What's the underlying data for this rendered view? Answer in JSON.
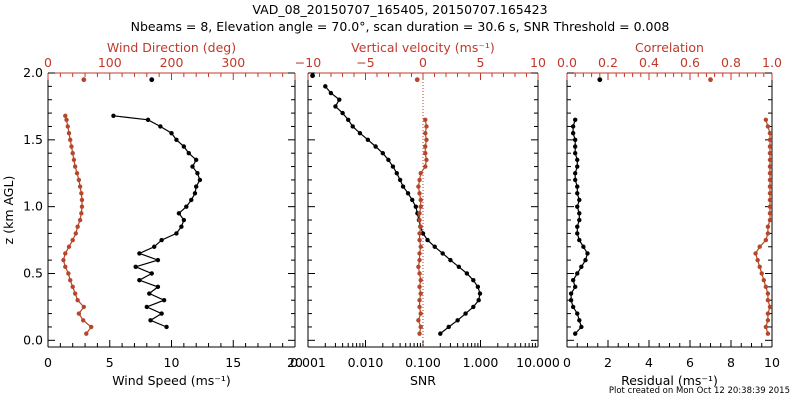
{
  "title_line1": "VAD_08_20150707_165405, 20150707.165423",
  "title_line2": "Nbeams = 8, Elevation angle = 70.0°, scan duration = 30.6 s, SNR Threshold = 0.008",
  "footer": "Plot created on Mon Oct 12 20:38:39 2015",
  "colors": {
    "black": "#000000",
    "red": "#c0392b",
    "orange": "#b5472a"
  },
  "y_axis": {
    "label": "z (km AGL)",
    "ticks": [
      "0.0",
      "0.5",
      "1.0",
      "1.5",
      "2.0"
    ],
    "ylim": [
      -0.05,
      2.0
    ]
  },
  "chart_data": [
    {
      "type": "line",
      "panel": "wind",
      "xlabel": "Wind Speed (ms⁻¹)",
      "xlim": [
        0,
        20
      ],
      "xticks": [
        "0",
        "5",
        "10",
        "15",
        "20"
      ],
      "top_xlabel": "Wind Direction (deg)",
      "top_xlim": [
        0,
        400
      ],
      "top_xticks": [
        "0",
        "100",
        "200",
        "300"
      ],
      "series": [
        {
          "name": "Wind Speed",
          "color": "#000000",
          "z": [
            0.1,
            0.15,
            0.2,
            0.25,
            0.3,
            0.35,
            0.4,
            0.45,
            0.5,
            0.55,
            0.6,
            0.65,
            0.7,
            0.75,
            0.8,
            0.85,
            0.9,
            0.95,
            1.0,
            1.05,
            1.1,
            1.15,
            1.2,
            1.25,
            1.3,
            1.35,
            1.4,
            1.45,
            1.5,
            1.55,
            1.6,
            1.65,
            1.68
          ],
          "values": [
            9.6,
            8.3,
            9.2,
            8.0,
            9.4,
            8.2,
            8.9,
            7.4,
            8.4,
            7.1,
            8.9,
            7.4,
            8.6,
            9.2,
            10.4,
            10.8,
            11.0,
            10.6,
            11.2,
            11.6,
            11.9,
            12.0,
            12.3,
            12.1,
            11.7,
            12.0,
            11.4,
            11.0,
            10.4,
            10.0,
            9.1,
            8.1,
            5.3
          ]
        },
        {
          "name": "Wind Direction",
          "color": "#b5472a",
          "z": [
            0.05,
            0.1,
            0.15,
            0.2,
            0.25,
            0.3,
            0.35,
            0.4,
            0.45,
            0.5,
            0.55,
            0.6,
            0.65,
            0.7,
            0.75,
            0.8,
            0.85,
            0.9,
            0.95,
            1.0,
            1.05,
            1.1,
            1.15,
            1.2,
            1.25,
            1.3,
            1.35,
            1.4,
            1.45,
            1.5,
            1.55,
            1.6,
            1.65,
            1.68
          ],
          "values": [
            62,
            70,
            57,
            50,
            58,
            48,
            44,
            40,
            36,
            33,
            28,
            25,
            28,
            34,
            40,
            45,
            48,
            52,
            54,
            55,
            55,
            54,
            52,
            50,
            47,
            44,
            42,
            40,
            38,
            36,
            34,
            32,
            30,
            28
          ]
        }
      ],
      "isolated_points": [
        {
          "name": "Wind Speed",
          "z": 1.95,
          "value": 8.4
        },
        {
          "name": "Wind Direction",
          "z": 1.95,
          "value": 58
        }
      ]
    },
    {
      "type": "line",
      "panel": "snr",
      "xlabel": "SNR",
      "xscale": "log",
      "xlim": [
        0.001,
        10.0
      ],
      "xticks": [
        "0.001",
        "0.010",
        "0.100",
        "1.000",
        "10.000"
      ],
      "top_xlabel": "Vertical velocity (ms⁻¹)",
      "top_xlim": [
        -10,
        10
      ],
      "top_xticks": [
        "−10",
        "−5",
        "0",
        "5",
        "10"
      ],
      "series": [
        {
          "name": "SNR",
          "color": "#000000",
          "z": [
            0.05,
            0.1,
            0.15,
            0.2,
            0.25,
            0.3,
            0.35,
            0.4,
            0.45,
            0.5,
            0.55,
            0.6,
            0.65,
            0.7,
            0.75,
            0.8,
            0.85,
            0.9,
            0.95,
            1.0,
            1.05,
            1.1,
            1.15,
            1.2,
            1.25,
            1.3,
            1.35,
            1.4,
            1.45,
            1.5,
            1.55,
            1.6,
            1.65,
            1.7,
            1.75,
            1.8,
            1.85,
            1.9
          ],
          "values": [
            0.2,
            0.28,
            0.4,
            0.55,
            0.75,
            0.93,
            0.98,
            0.9,
            0.75,
            0.58,
            0.42,
            0.3,
            0.22,
            0.16,
            0.12,
            0.1,
            0.09,
            0.085,
            0.08,
            0.075,
            0.065,
            0.055,
            0.045,
            0.04,
            0.035,
            0.03,
            0.025,
            0.02,
            0.015,
            0.011,
            0.008,
            0.006,
            0.005,
            0.004,
            0.003,
            0.0035,
            0.0025,
            0.002
          ]
        },
        {
          "name": "Vertical velocity",
          "color": "#b5472a",
          "z": [
            0.05,
            0.1,
            0.15,
            0.2,
            0.25,
            0.3,
            0.35,
            0.4,
            0.45,
            0.5,
            0.55,
            0.6,
            0.65,
            0.7,
            0.75,
            0.8,
            0.85,
            0.9,
            0.95,
            1.0,
            1.05,
            1.1,
            1.15,
            1.2,
            1.25,
            1.3,
            1.35,
            1.4,
            1.45,
            1.5,
            1.55,
            1.6,
            1.65
          ],
          "values": [
            -0.3,
            -0.2,
            -0.4,
            -0.2,
            -0.3,
            -0.3,
            -0.2,
            -0.3,
            -0.2,
            -0.3,
            -0.4,
            -0.3,
            -0.3,
            -0.2,
            -0.3,
            -0.3,
            -0.2,
            -0.3,
            -0.3,
            -0.2,
            -0.2,
            -0.3,
            -0.4,
            -0.3,
            -0.2,
            0.2,
            0.3,
            0.2,
            0.2,
            0.3,
            0.2,
            0.3,
            0.2
          ]
        }
      ],
      "isolated_points": [
        {
          "name": "Vertical velocity",
          "z": 1.95,
          "value": -0.5
        },
        {
          "name": "SNR",
          "z": 1.98,
          "value": 0.0012
        }
      ],
      "reference_line": {
        "top_axis_value": 0,
        "style": "dotted",
        "color": "#c0392b"
      }
    },
    {
      "type": "line",
      "panel": "correlation",
      "xlabel": "Residual (ms⁻¹)",
      "xlim": [
        0,
        10
      ],
      "xticks": [
        "0",
        "2",
        "4",
        "6",
        "8",
        "10"
      ],
      "top_xlabel": "Correlation",
      "top_xlim": [
        0.0,
        1.0
      ],
      "top_xticks": [
        "0.0",
        "0.2",
        "0.4",
        "0.6",
        "0.8",
        "1.0"
      ],
      "series": [
        {
          "name": "Residual",
          "color": "#000000",
          "z": [
            0.05,
            0.1,
            0.15,
            0.2,
            0.25,
            0.3,
            0.35,
            0.4,
            0.45,
            0.5,
            0.55,
            0.6,
            0.65,
            0.7,
            0.75,
            0.8,
            0.85,
            0.9,
            0.95,
            1.0,
            1.05,
            1.1,
            1.15,
            1.2,
            1.25,
            1.3,
            1.35,
            1.4,
            1.45,
            1.5,
            1.55,
            1.6,
            1.65
          ],
          "values": [
            0.4,
            0.7,
            0.6,
            0.5,
            0.3,
            0.2,
            0.2,
            0.4,
            0.3,
            0.5,
            0.7,
            0.9,
            1.0,
            0.8,
            0.6,
            0.5,
            0.5,
            0.6,
            0.6,
            0.5,
            0.6,
            0.5,
            0.5,
            0.4,
            0.4,
            0.5,
            0.5,
            0.4,
            0.4,
            0.4,
            0.3,
            0.3,
            0.4
          ]
        },
        {
          "name": "Correlation",
          "color": "#b5472a",
          "z": [
            0.05,
            0.1,
            0.15,
            0.2,
            0.25,
            0.3,
            0.35,
            0.4,
            0.45,
            0.5,
            0.55,
            0.6,
            0.65,
            0.7,
            0.75,
            0.8,
            0.85,
            0.9,
            0.95,
            1.0,
            1.05,
            1.1,
            1.15,
            1.2,
            1.25,
            1.3,
            1.35,
            1.4,
            1.45,
            1.5,
            1.55,
            1.6,
            1.65
          ],
          "values": [
            0.98,
            0.97,
            0.98,
            0.98,
            0.99,
            0.98,
            0.98,
            0.97,
            0.96,
            0.95,
            0.94,
            0.93,
            0.92,
            0.94,
            0.97,
            0.98,
            0.98,
            0.99,
            0.99,
            0.99,
            0.99,
            0.99,
            0.99,
            0.99,
            0.99,
            0.99,
            0.99,
            0.99,
            0.99,
            0.99,
            0.99,
            0.98,
            0.97
          ]
        }
      ],
      "isolated_points": [
        {
          "name": "Residual",
          "z": 1.95,
          "value": 1.6
        },
        {
          "name": "Correlation",
          "z": 1.95,
          "value": 0.7
        }
      ]
    }
  ]
}
